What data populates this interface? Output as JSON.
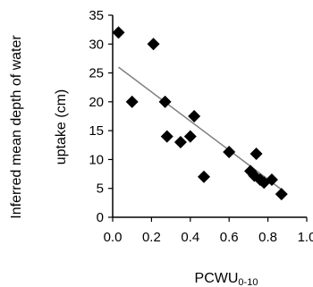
{
  "colors": {
    "background": "#ffffff",
    "axis": "#000000",
    "marker": "#000000",
    "trendline": "#808080",
    "text": "#000000"
  },
  "chart_data": {
    "type": "scatter",
    "title": "",
    "xlabel": "PCWU",
    "xlabel_subscript": "0-10",
    "ylabel_lines": [
      "Inferred mean depth of water",
      "uptake (cm)"
    ],
    "xlim": [
      0.0,
      1.0
    ],
    "ylim": [
      0,
      35
    ],
    "xticks": [
      0.0,
      0.2,
      0.4,
      0.6,
      0.8,
      1.0
    ],
    "xtick_labels": [
      "0.0",
      "0.2",
      "0.4",
      "0.6",
      "0.8",
      "1.0"
    ],
    "yticks": [
      0,
      5,
      10,
      15,
      20,
      25,
      30,
      35
    ],
    "ytick_labels": [
      "0",
      "5",
      "10",
      "15",
      "20",
      "25",
      "30",
      "35"
    ],
    "grid": false,
    "legend": "none",
    "marker": "diamond",
    "series": [
      {
        "points": [
          {
            "x": 0.03,
            "y": 32
          },
          {
            "x": 0.1,
            "y": 20
          },
          {
            "x": 0.21,
            "y": 30
          },
          {
            "x": 0.27,
            "y": 20
          },
          {
            "x": 0.28,
            "y": 14
          },
          {
            "x": 0.35,
            "y": 13
          },
          {
            "x": 0.4,
            "y": 14
          },
          {
            "x": 0.42,
            "y": 17.5
          },
          {
            "x": 0.47,
            "y": 7
          },
          {
            "x": 0.6,
            "y": 11.3
          },
          {
            "x": 0.71,
            "y": 8
          },
          {
            "x": 0.73,
            "y": 7.2
          },
          {
            "x": 0.74,
            "y": 11
          },
          {
            "x": 0.76,
            "y": 6.5
          },
          {
            "x": 0.78,
            "y": 6
          },
          {
            "x": 0.82,
            "y": 6.5
          },
          {
            "x": 0.87,
            "y": 4
          }
        ]
      }
    ],
    "trendline": {
      "type": "linear",
      "x": [
        0.03,
        0.87
      ],
      "y": [
        26,
        4.8
      ]
    }
  }
}
